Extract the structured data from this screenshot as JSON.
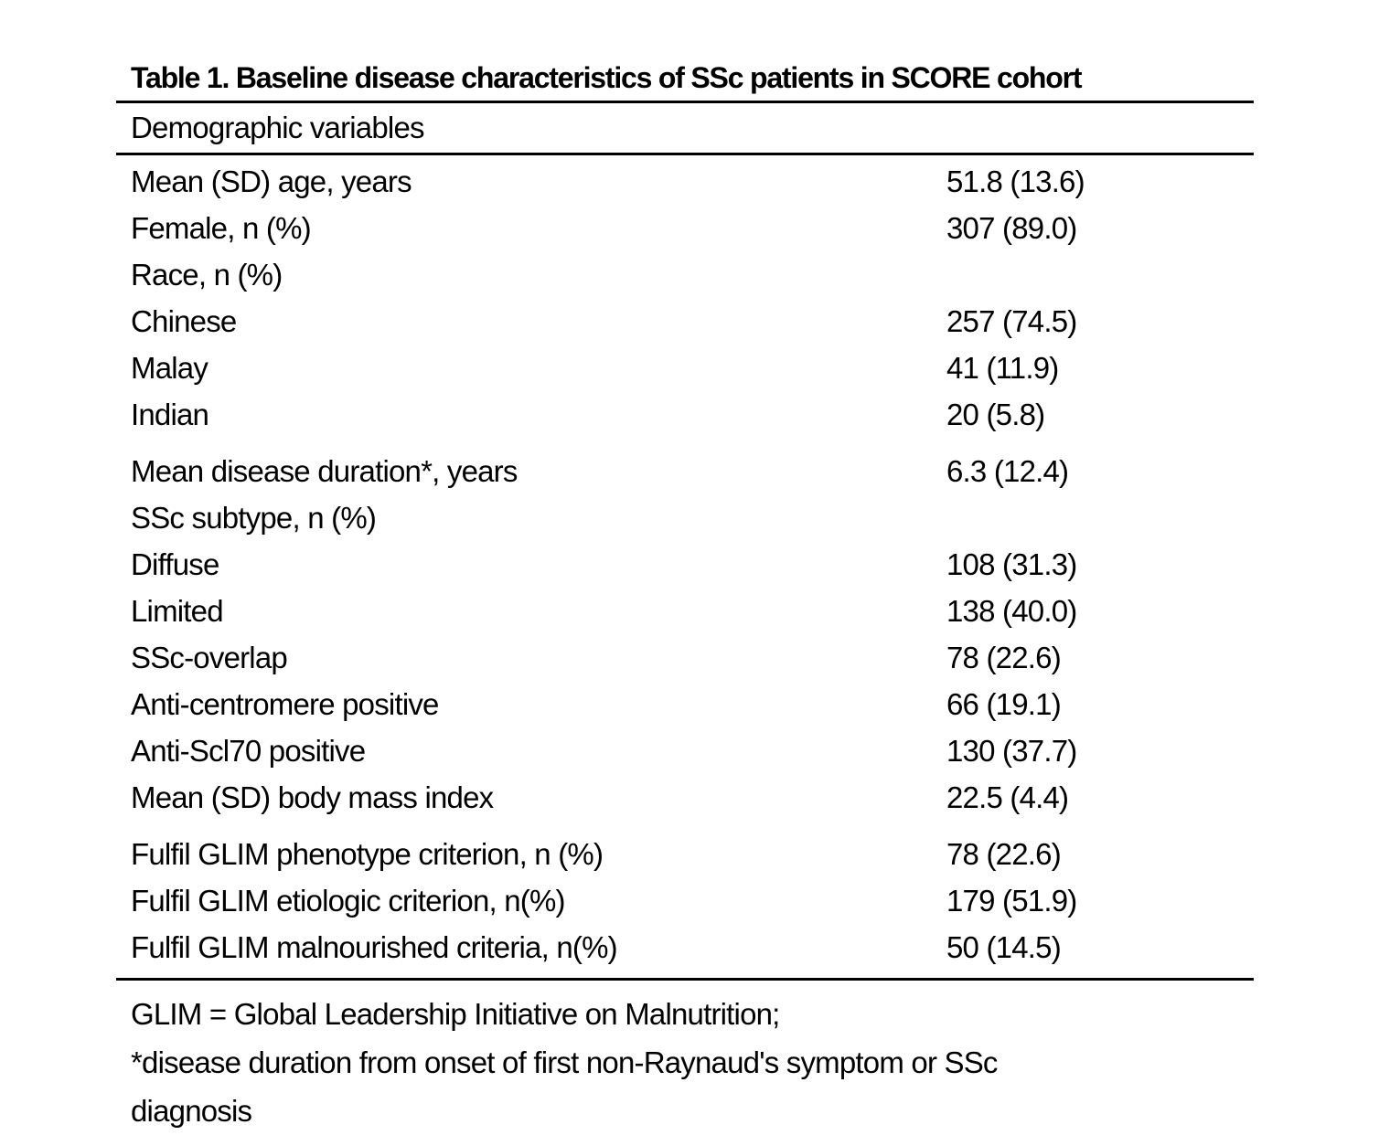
{
  "title": "Table 1. Baseline disease characteristics of SSc patients in SCORE cohort",
  "section_header": "Demographic variables",
  "table": {
    "rows": [
      {
        "label": "Mean (SD) age, years",
        "value": "51.8 (13.6)"
      },
      {
        "label": "Female, n (%)",
        "value": "307 (89.0)"
      },
      {
        "label": "Race, n (%)",
        "value": ""
      },
      {
        "label": "Chinese",
        "value": "257 (74.5)"
      },
      {
        "label": "Malay",
        "value": "41 (11.9)"
      },
      {
        "label": "Indian",
        "value": "20 (5.8)"
      },
      {
        "label": "Mean disease duration*, years",
        "value": "6.3 (12.4)"
      },
      {
        "label": "SSc subtype, n (%)",
        "value": ""
      },
      {
        "label": "Diffuse",
        "value": "108 (31.3)"
      },
      {
        "label": "Limited",
        "value": "138 (40.0)"
      },
      {
        "label": "SSc-overlap",
        "value": "78 (22.6)"
      },
      {
        "label": "Anti-centromere positive",
        "value": "66 (19.1)"
      },
      {
        "label": "Anti-Scl70 positive",
        "value": "130 (37.7)"
      },
      {
        "label": "Mean (SD) body mass index",
        "value": "22.5 (4.4)"
      },
      {
        "label": "Fulfil GLIM phenotype criterion, n (%)",
        "value": "78 (22.6)"
      },
      {
        "label": "Fulfil GLIM etiologic criterion, n(%)",
        "value": "179 (51.9)"
      },
      {
        "label": "Fulfil GLIM malnourished criteria, n(%)",
        "value": "50 (14.5)"
      }
    ]
  },
  "footnotes": {
    "lines": [
      "GLIM = Global Leadership Initiative on Malnutrition;",
      "*disease duration from onset of first non-Raynaud's symptom or SSc",
      "diagnosis"
    ]
  },
  "colors": {
    "background": "#ffffff",
    "text": "#000000",
    "rule": "#000000"
  }
}
